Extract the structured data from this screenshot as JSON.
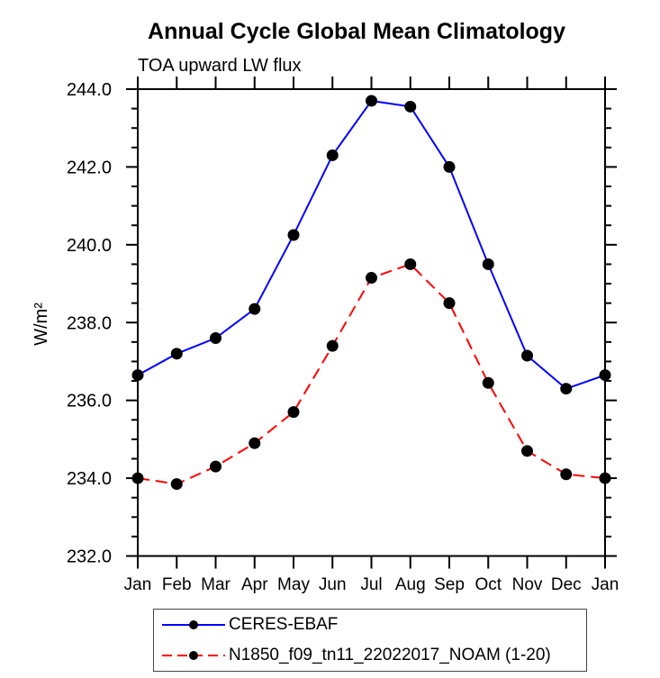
{
  "page": {
    "background": "#ffffff"
  },
  "chart_data": {
    "type": "line",
    "title": "Annual Cycle Global Mean Climatology",
    "subtitle": "TOA upward LW flux",
    "ylabel": "W/m²",
    "xlabel": "",
    "categories": [
      "Jan",
      "Feb",
      "Mar",
      "Apr",
      "May",
      "Jun",
      "Jul",
      "Aug",
      "Sep",
      "Oct",
      "Nov",
      "Dec",
      "Jan"
    ],
    "ylim": [
      232.0,
      244.0
    ],
    "ytick_interval": 2.0,
    "yminor_interval": 0.5,
    "ytick_labels": [
      "232.0",
      "234.0",
      "236.0",
      "238.0",
      "240.0",
      "242.0",
      "244.0"
    ],
    "grid": false,
    "legend_position": "bottom-left",
    "frame": "box-with-outward-ticks",
    "series": [
      {
        "name": "CERES-EBAF",
        "color": "#0000ff",
        "line_style": "solid",
        "marker": "circle",
        "marker_color": "#000000",
        "values": [
          236.65,
          237.2,
          237.6,
          238.35,
          240.25,
          242.3,
          243.7,
          243.55,
          242.0,
          239.5,
          237.15,
          236.3,
          236.65
        ]
      },
      {
        "name": "N1850_f09_tn11_22022017_NOAM (1-20)",
        "color": "#ff0000",
        "line_style": "dashed",
        "marker": "circle",
        "marker_color": "#000000",
        "values": [
          234.0,
          233.85,
          234.3,
          234.9,
          235.7,
          237.4,
          239.15,
          239.5,
          238.5,
          236.45,
          234.7,
          234.1,
          234.0
        ]
      }
    ],
    "axis_color": "#000000"
  }
}
